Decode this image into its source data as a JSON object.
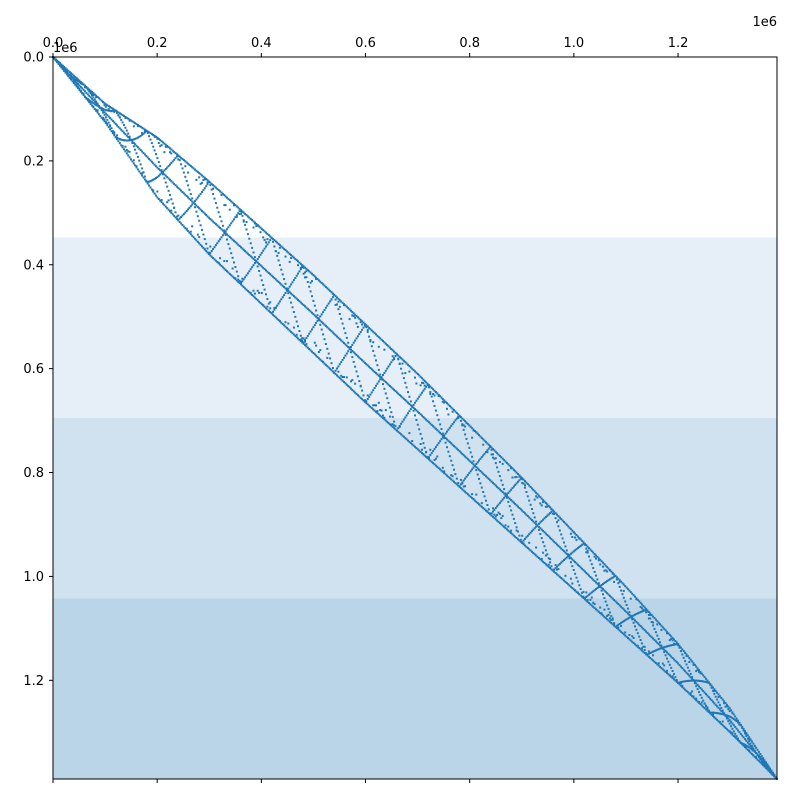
{
  "chart_data": {
    "type": "scatter",
    "title": "",
    "xlabel": "",
    "ylabel": "",
    "x_axis_position": "top",
    "y_axis_inverted": true,
    "xlim": [
      0,
      1390000
    ],
    "ylim": [
      0,
      1390000
    ],
    "x_ticks": [
      0,
      200000,
      400000,
      600000,
      800000,
      1000000,
      1200000
    ],
    "x_tick_labels": [
      "0.0",
      "0.2",
      "0.4",
      "0.6",
      "0.8",
      "1.0",
      "1.2"
    ],
    "y_ticks": [
      0,
      200000,
      400000,
      600000,
      800000,
      1000000,
      1200000
    ],
    "y_tick_labels": [
      "0.0",
      "0.2",
      "0.4",
      "0.6",
      "0.8",
      "1.0",
      "1.2"
    ],
    "x_offset_label": "1e6",
    "y_offset_label": "1e6",
    "grid": false,
    "legend": "none",
    "marker_color": "#1f77b4",
    "bands": [
      {
        "from": 347500,
        "to": 695000,
        "color": "#e6eff8"
      },
      {
        "from": 695000,
        "to": 1042500,
        "color": "#d0e1ef"
      },
      {
        "from": 1042500,
        "to": 1390000,
        "color": "#bbd5e8"
      }
    ],
    "envelope": {
      "description_points": [
        {
          "x": 0,
          "upper_y": 0,
          "lower_y": 0
        },
        {
          "x": 100000,
          "upper_y": 90000,
          "lower_y": 125000
        },
        {
          "x": 200000,
          "upper_y": 155000,
          "lower_y": 270000
        },
        {
          "x": 300000,
          "upper_y": 240000,
          "lower_y": 380000
        },
        {
          "x": 400000,
          "upper_y": 330000,
          "lower_y": 475000
        },
        {
          "x": 500000,
          "upper_y": 420000,
          "lower_y": 570000
        },
        {
          "x": 600000,
          "upper_y": 515000,
          "lower_y": 665000
        },
        {
          "x": 700000,
          "upper_y": 610000,
          "lower_y": 755000
        },
        {
          "x": 800000,
          "upper_y": 710000,
          "lower_y": 845000
        },
        {
          "x": 900000,
          "upper_y": 810000,
          "lower_y": 935000
        },
        {
          "x": 1000000,
          "upper_y": 915000,
          "lower_y": 1025000
        },
        {
          "x": 1100000,
          "upper_y": 1020000,
          "lower_y": 1115000
        },
        {
          "x": 1200000,
          "upper_y": 1130000,
          "lower_y": 1205000
        },
        {
          "x": 1300000,
          "upper_y": 1255000,
          "lower_y": 1300000
        },
        {
          "x": 1390000,
          "upper_y": 1390000,
          "lower_y": 1390000
        }
      ]
    }
  }
}
